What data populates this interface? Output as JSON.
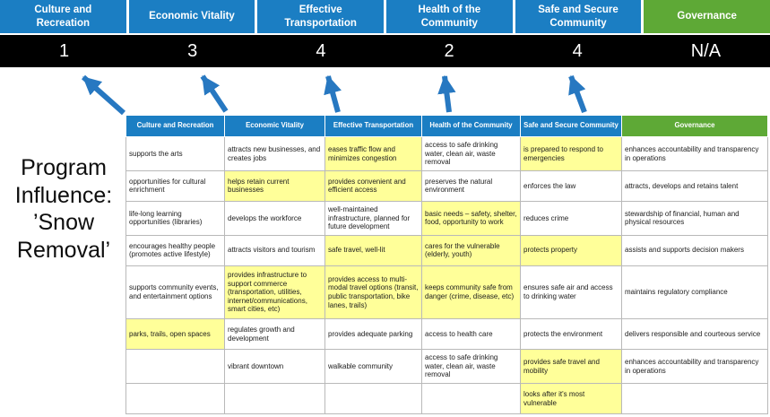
{
  "title": {
    "line1": "Program Influence:",
    "line2": "’Snow Removal’"
  },
  "colors": {
    "pillar_blue": "#1B7EC3",
    "governance_green": "#5EA936",
    "score_bar_black": "#000000",
    "highlight_yellow": "#FFFF99",
    "arrow_blue": "#2778C1"
  },
  "scoreboard": {
    "columns": [
      {
        "label": "Culture and Recreation",
        "score": "1",
        "color": "#1B7EC3"
      },
      {
        "label": "Economic Vitality",
        "score": "3",
        "color": "#1B7EC3"
      },
      {
        "label": "Effective Transportation",
        "score": "4",
        "color": "#1B7EC3"
      },
      {
        "label": "Health of the Community",
        "score": "2",
        "color": "#1B7EC3"
      },
      {
        "label": "Safe and Secure Community",
        "score": "4",
        "color": "#1B7EC3"
      },
      {
        "label": "Governance",
        "score": "N/A",
        "color": "#5EA936"
      }
    ]
  },
  "matrix": {
    "headers": [
      {
        "label": "Culture and Recreation",
        "color": "#1B7EC3"
      },
      {
        "label": "Economic Vitality",
        "color": "#1B7EC3"
      },
      {
        "label": "Effective Transportation",
        "color": "#1B7EC3"
      },
      {
        "label": "Health of the Community",
        "color": "#1B7EC3"
      },
      {
        "label": "Safe and Secure Community",
        "color": "#1B7EC3"
      },
      {
        "label": "Governance",
        "color": "#5EA936"
      }
    ],
    "rows": [
      [
        {
          "text": "supports the arts",
          "highlight": false
        },
        {
          "text": "attracts new businesses, and creates jobs",
          "highlight": false
        },
        {
          "text": "eases traffic flow and minimizes congestion",
          "highlight": true
        },
        {
          "text": "access to safe drinking water, clean air, waste removal",
          "highlight": false
        },
        {
          "text": "is prepared to respond to emergencies",
          "highlight": true
        },
        {
          "text": "enhances accountability and transparency in operations",
          "highlight": false
        }
      ],
      [
        {
          "text": "opportunities for cultural enrichment",
          "highlight": false
        },
        {
          "text": "helps retain current businesses",
          "highlight": true
        },
        {
          "text": "provides convenient and efficient access",
          "highlight": true
        },
        {
          "text": "preserves the natural environment",
          "highlight": false
        },
        {
          "text": "enforces the law",
          "highlight": false
        },
        {
          "text": "attracts, develops and retains talent",
          "highlight": false
        }
      ],
      [
        {
          "text": "life-long learning opportunities (libraries)",
          "highlight": false
        },
        {
          "text": "develops the workforce",
          "highlight": false
        },
        {
          "text": "well-maintained infrastructure, planned for future development",
          "highlight": false
        },
        {
          "text": "basic needs – safety, shelter, food, opportunity to work",
          "highlight": true
        },
        {
          "text": "reduces crime",
          "highlight": false
        },
        {
          "text": "stewardship of financial, human and physical resources",
          "highlight": false
        }
      ],
      [
        {
          "text": "encourages healthy people (promotes active lifestyle)",
          "highlight": false
        },
        {
          "text": "attracts visitors and tourism",
          "highlight": false
        },
        {
          "text": "safe travel, well-lit",
          "highlight": true
        },
        {
          "text": "cares for the vulnerable (elderly, youth)",
          "highlight": true
        },
        {
          "text": "protects property",
          "highlight": true
        },
        {
          "text": "assists and supports decision makers",
          "highlight": false
        }
      ],
      [
        {
          "text": "supports community events, and entertainment options",
          "highlight": false
        },
        {
          "text": "provides infrastructure to support commerce (transportation, utilities, internet/communications, smart cities, etc)",
          "highlight": true
        },
        {
          "text": "provides access to multi-modal travel options (transit, public transportation, bike lanes, trails)",
          "highlight": true
        },
        {
          "text": "keeps community safe from danger (crime, disease, etc)",
          "highlight": true
        },
        {
          "text": "ensures safe air and access to drinking water",
          "highlight": false
        },
        {
          "text": "maintains regulatory compliance",
          "highlight": false
        }
      ],
      [
        {
          "text": "parks, trails, open spaces",
          "highlight": true
        },
        {
          "text": "regulates growth and development",
          "highlight": false
        },
        {
          "text": "provides adequate parking",
          "highlight": false
        },
        {
          "text": "access to health care",
          "highlight": false
        },
        {
          "text": "protects the environment",
          "highlight": false
        },
        {
          "text": "delivers responsible and courteous service",
          "highlight": false
        }
      ],
      [
        {
          "text": "",
          "highlight": false
        },
        {
          "text": "vibrant downtown",
          "highlight": false
        },
        {
          "text": "walkable community",
          "highlight": false
        },
        {
          "text": "access to safe drinking water, clean air, waste removal",
          "highlight": false
        },
        {
          "text": "provides safe travel and mobility",
          "highlight": true
        },
        {
          "text": "enhances accountability and transparency in operations",
          "highlight": false
        }
      ],
      [
        {
          "text": "",
          "highlight": false
        },
        {
          "text": "",
          "highlight": false
        },
        {
          "text": "",
          "highlight": false
        },
        {
          "text": "",
          "highlight": false
        },
        {
          "text": "looks after it's most vulnerable",
          "highlight": true
        },
        {
          "text": "",
          "highlight": false
        }
      ]
    ]
  }
}
